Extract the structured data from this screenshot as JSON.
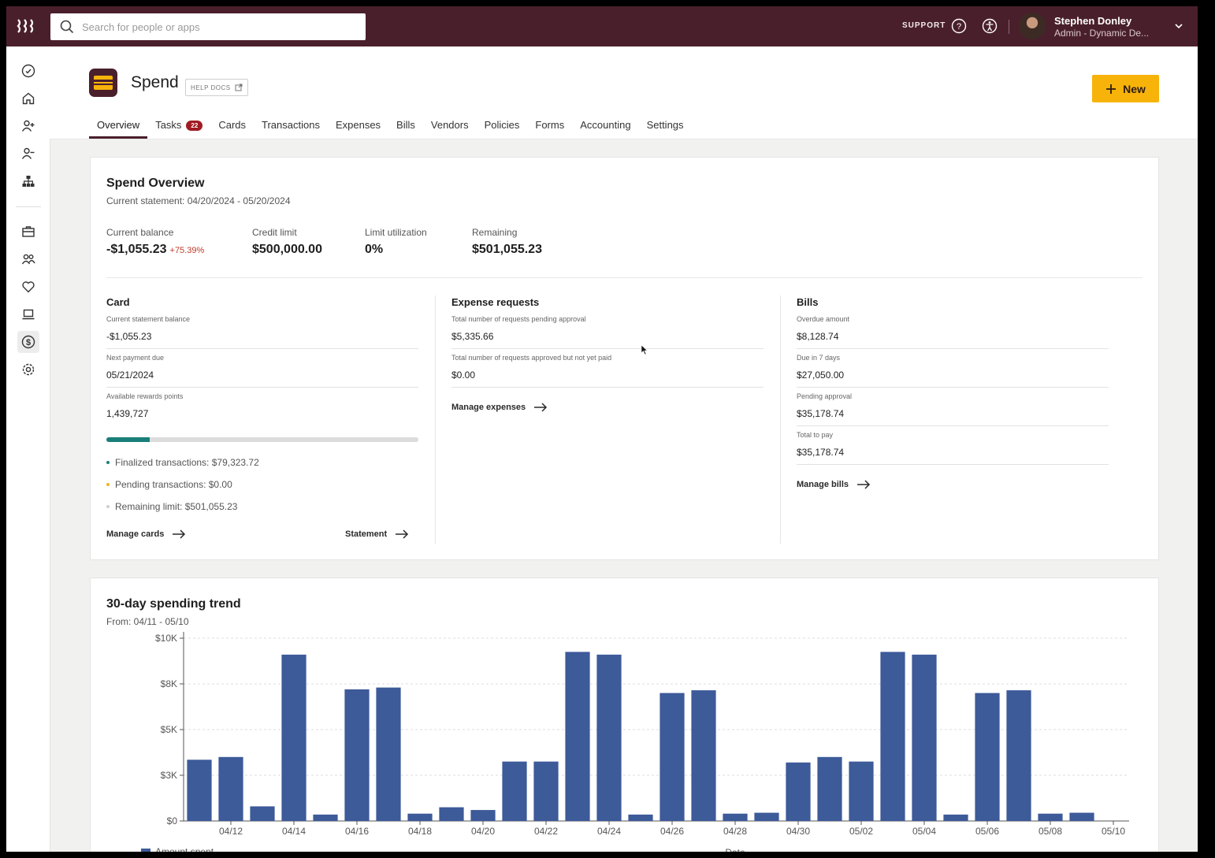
{
  "topbar": {
    "search_placeholder": "Search for people or apps",
    "support_label": "SUPPORT",
    "user_name": "Stephen Donley",
    "user_role": "Admin - Dynamic De..."
  },
  "app": {
    "title": "Spend",
    "help_docs_label": "HELP DOCS",
    "new_button_label": "New"
  },
  "tabs": [
    {
      "label": "Overview"
    },
    {
      "label": "Tasks",
      "badge": "22"
    },
    {
      "label": "Cards"
    },
    {
      "label": "Transactions"
    },
    {
      "label": "Expenses"
    },
    {
      "label": "Bills"
    },
    {
      "label": "Vendors"
    },
    {
      "label": "Policies"
    },
    {
      "label": "Forms"
    },
    {
      "label": "Accounting"
    },
    {
      "label": "Settings"
    }
  ],
  "overview": {
    "title": "Spend Overview",
    "statement": "Current statement: 04/20/2024 - 05/20/2024",
    "stats": [
      {
        "label": "Current balance",
        "value": "-$1,055.23",
        "delta": "+75.39%"
      },
      {
        "label": "Credit limit",
        "value": "$500,000.00"
      },
      {
        "label": "Limit utilization",
        "value": "0%"
      },
      {
        "label": "Remaining",
        "value": "$501,055.23"
      }
    ],
    "card": {
      "title": "Card",
      "rows": [
        {
          "label": "Current statement balance",
          "value": "-$1,055.23"
        },
        {
          "label": "Next payment due",
          "value": "05/21/2024"
        },
        {
          "label": "Available rewards points",
          "value": "1,439,727"
        }
      ],
      "progress_fraction": 0.14,
      "legend": [
        {
          "label": "Finalized transactions: $79,323.72",
          "color": "#1a7f7a"
        },
        {
          "label": "Pending transactions: $0.00",
          "color": "#f0b429"
        },
        {
          "label": "Remaining limit: $501,055.23",
          "color": "#cfcfcf"
        }
      ],
      "manage_link": "Manage cards",
      "statement_link": "Statement"
    },
    "expenses": {
      "title": "Expense requests",
      "rows": [
        {
          "label": "Total number of requests pending approval",
          "value": "$5,335.66"
        },
        {
          "label": "Total number of requests approved but not yet paid",
          "value": "$0.00"
        }
      ],
      "manage_link": "Manage expenses"
    },
    "bills": {
      "title": "Bills",
      "rows": [
        {
          "label": "Overdue amount",
          "value": "$8,128.74"
        },
        {
          "label": "Due in 7 days",
          "value": "$27,050.00"
        },
        {
          "label": "Pending approval",
          "value": "$35,178.74"
        },
        {
          "label": "Total to pay",
          "value": "$35,178.74"
        }
      ],
      "manage_link": "Manage bills"
    }
  },
  "trend": {
    "title": "30-day spending trend",
    "subtitle": "From: 04/11 - 05/10"
  },
  "chart_data": {
    "type": "bar",
    "title": "30-day spending trend",
    "xlabel": "Date",
    "ylabel": "",
    "ylim": [
      0,
      10000
    ],
    "yticks": [
      0,
      2500,
      5000,
      7500,
      10000
    ],
    "ytick_labels": [
      "$0",
      "$3K",
      "$5K",
      "$8K",
      "$10K"
    ],
    "categories": [
      "04/11",
      "04/12",
      "04/13",
      "04/14",
      "04/15",
      "04/16",
      "04/17",
      "04/18",
      "04/19",
      "04/20",
      "04/21",
      "04/22",
      "04/23",
      "04/24",
      "04/25",
      "04/26",
      "04/27",
      "04/28",
      "04/29",
      "04/30",
      "05/01",
      "05/02",
      "05/03",
      "05/04",
      "05/05",
      "05/06",
      "05/07",
      "05/08",
      "05/09",
      "05/10"
    ],
    "xtick_labels": [
      "04/12",
      "04/14",
      "04/16",
      "04/18",
      "04/20",
      "04/22",
      "04/24",
      "04/26",
      "04/28",
      "04/30",
      "05/02",
      "05/04",
      "05/06",
      "05/08",
      "05/10"
    ],
    "series": [
      {
        "name": "Amount spent",
        "color": "#3d5a99",
        "values": [
          3350,
          3500,
          800,
          9100,
          350,
          7200,
          7300,
          400,
          750,
          600,
          3250,
          3250,
          9250,
          9100,
          350,
          7000,
          7150,
          400,
          450,
          3200,
          3500,
          3250,
          9250,
          9100,
          350,
          7000,
          7150,
          400,
          450,
          0
        ]
      }
    ],
    "legend": [
      "Amount spent"
    ]
  }
}
